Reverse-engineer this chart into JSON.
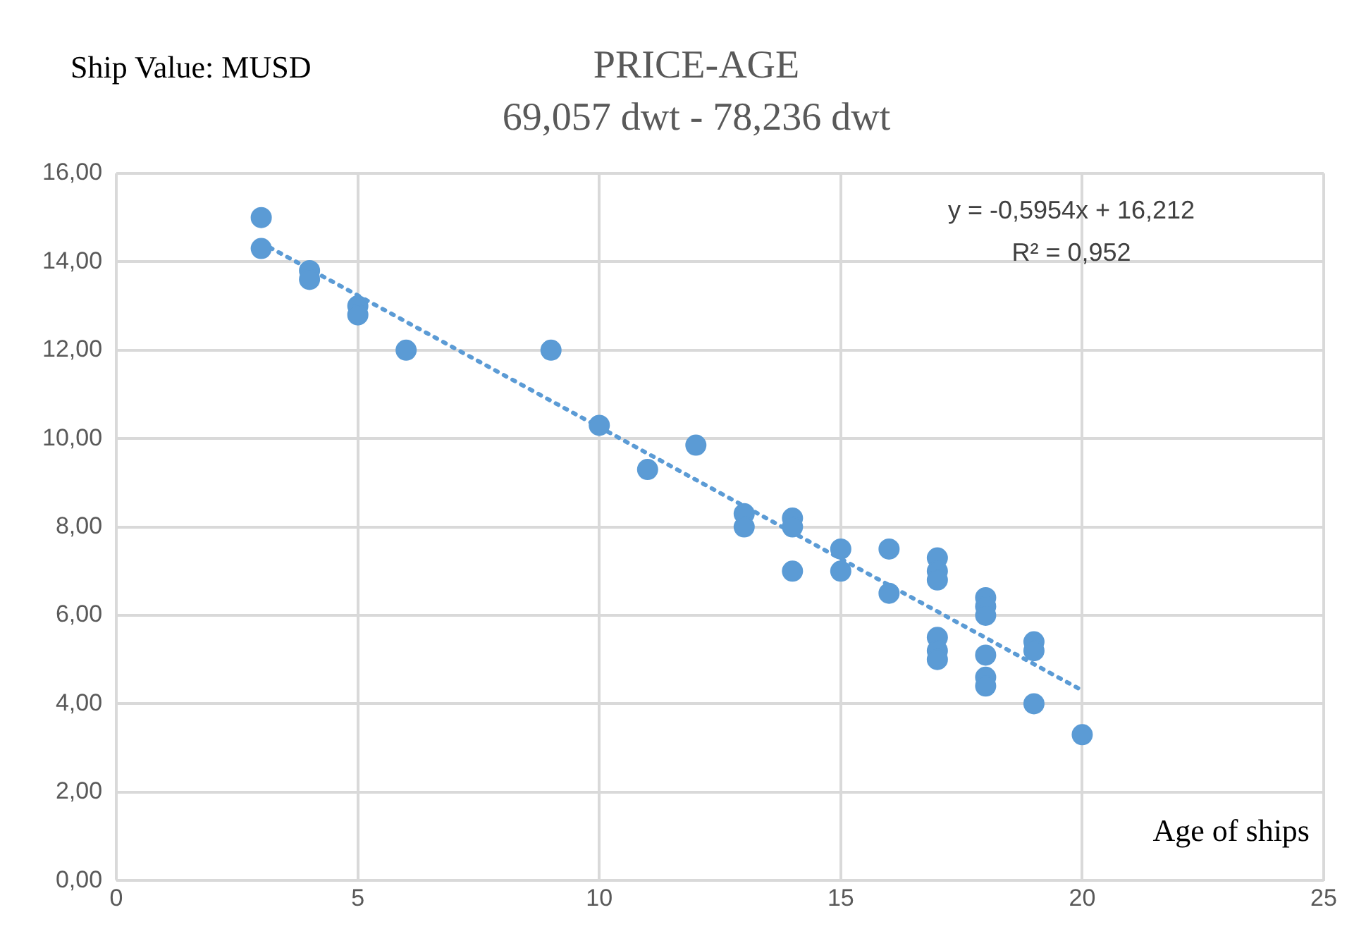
{
  "chart_data": {
    "type": "scatter",
    "title": "PRICE-AGE",
    "subtitle": "69,057 dwt - 78,236 dwt",
    "ylabel": "Ship Value: MUSD",
    "xlabel": "Age of ships",
    "annotations": [
      "y = -0,5954x + 16,212",
      "R² = 0,952"
    ],
    "xlim": [
      0,
      25
    ],
    "xticks": [
      0,
      5,
      10,
      15,
      20,
      25
    ],
    "ylim": [
      0,
      16
    ],
    "yticks": [
      {
        "value": 0,
        "label": "0,00"
      },
      {
        "value": 2,
        "label": "2,00"
      },
      {
        "value": 4,
        "label": "4,00"
      },
      {
        "value": 6,
        "label": "6,00"
      },
      {
        "value": 8,
        "label": "8,00"
      },
      {
        "value": 10,
        "label": "10,00"
      },
      {
        "value": 12,
        "label": "12,00"
      },
      {
        "value": 14,
        "label": "14,00"
      },
      {
        "value": 16,
        "label": "16,00"
      }
    ],
    "grid": true,
    "legend": false,
    "series": [
      {
        "color": "#5b9bd5",
        "marker": "circle",
        "x": [
          3,
          3,
          4,
          4,
          5,
          5,
          6,
          9,
          10,
          11,
          12,
          13,
          13,
          14,
          14,
          14,
          15,
          15,
          16,
          16,
          17,
          17,
          17,
          17,
          17,
          17,
          18,
          18,
          18,
          18,
          18,
          18,
          19,
          19,
          19,
          20
        ],
        "values": [
          15,
          14.3,
          13.8,
          13.6,
          13,
          12.8,
          12,
          12,
          10.3,
          9.3,
          9.85,
          8.3,
          8,
          8.2,
          8,
          7,
          7.5,
          7,
          7.5,
          6.5,
          7.3,
          7,
          6.8,
          5.5,
          5.2,
          5,
          6.4,
          6.2,
          6,
          5.1,
          4.6,
          4.4,
          5.4,
          5.2,
          4,
          3.3
        ]
      },
      {
        "type": "line",
        "color": "#5b9bd5",
        "marker": "none",
        "line_style": "dotted",
        "x": [
          3,
          20
        ],
        "values": [
          14.43,
          4.3
        ]
      }
    ]
  }
}
